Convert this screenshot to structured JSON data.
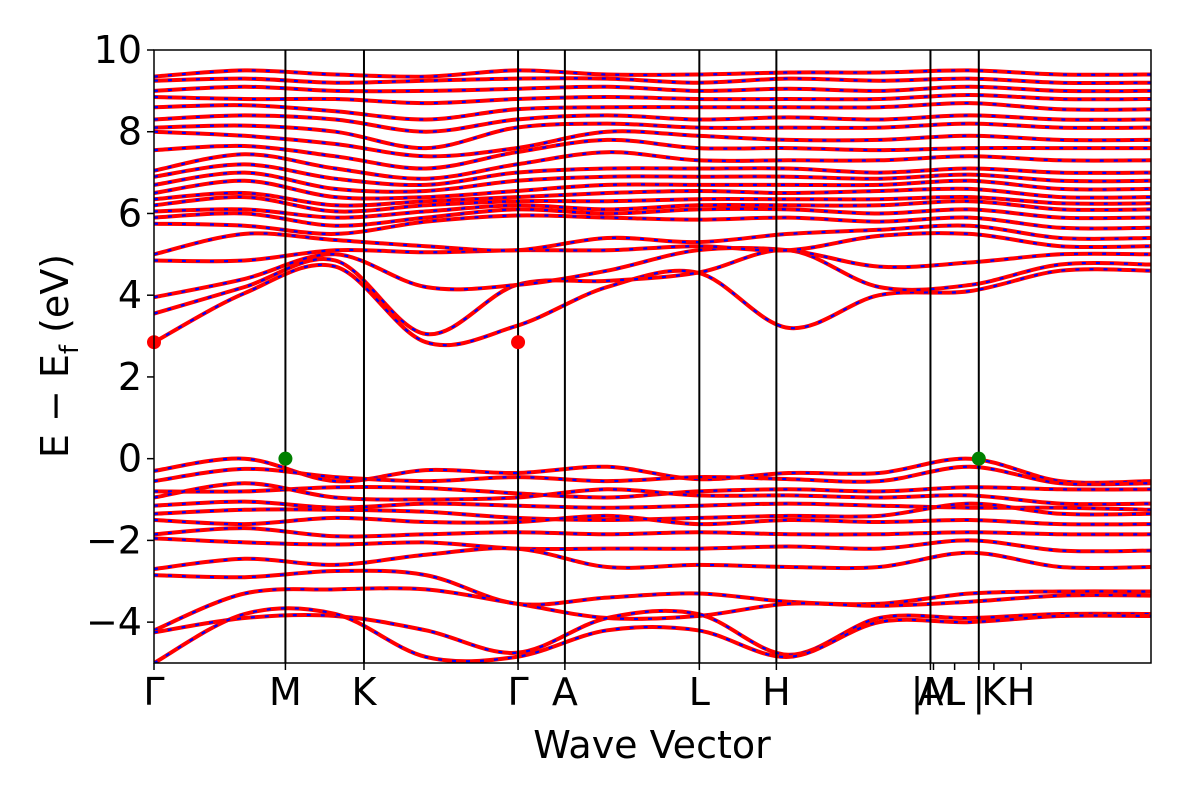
{
  "chart_data": {
    "type": "line",
    "title": "",
    "xlabel": "Wave Vector",
    "ylabel_parts": [
      "E − E",
      "f",
      " (eV)"
    ],
    "ylim": [
      -5,
      10
    ],
    "yticks": [
      {
        "value": 10,
        "label": "10"
      },
      {
        "value": 8,
        "label": "8"
      },
      {
        "value": 6,
        "label": "6"
      },
      {
        "value": 4,
        "label": "4"
      },
      {
        "value": 2,
        "label": "2"
      },
      {
        "value": 0,
        "label": "0"
      },
      {
        "value": -2,
        "label": "−2"
      },
      {
        "value": -4,
        "label": "−4"
      }
    ],
    "xlim": [
      0,
      6.6
    ],
    "kpoints": [
      {
        "x": 0.0,
        "label": "Γ"
      },
      {
        "x": 0.87,
        "label": "M"
      },
      {
        "x": 1.39,
        "label": "K"
      },
      {
        "x": 2.41,
        "label": "Γ"
      },
      {
        "x": 2.72,
        "label": "A"
      },
      {
        "x": 3.61,
        "label": "L"
      },
      {
        "x": 4.12,
        "label": "H"
      },
      {
        "x": 5.14,
        "label": "A"
      },
      {
        "x": 5.16,
        "label": "|M"
      },
      {
        "x": 5.3,
        "label": "L"
      },
      {
        "x": 5.46,
        "label": "|"
      },
      {
        "x": 5.56,
        "label": "K"
      },
      {
        "x": 5.74,
        "label": "H"
      }
    ],
    "vlines": [
      0.87,
      1.39,
      2.41,
      2.72,
      3.61,
      4.12,
      5.14,
      5.46
    ],
    "segments": [
      [
        0,
        5.14
      ],
      [
        5.14,
        5.46
      ],
      [
        5.46,
        6.6
      ]
    ],
    "series": [
      {
        "color": "#ff0000",
        "dash_color": "#0000ff"
      }
    ],
    "extrema": [
      {
        "x": 0.0,
        "y": 2.85,
        "color": "#ff0000"
      },
      {
        "x": 2.41,
        "y": 2.85,
        "color": "#ff0000"
      },
      {
        "x": 0.87,
        "y": 0.0,
        "color": "#008000"
      },
      {
        "x": 5.46,
        "y": 0.0,
        "color": "#008000"
      }
    ],
    "valence_bands": [
      [
        -0.3,
        0.0,
        -0.55,
        -0.28,
        -0.35,
        -0.2,
        -0.5,
        -0.35,
        -0.35,
        0.0,
        -0.55,
        -0.55
      ],
      [
        -0.55,
        -0.25,
        -0.45,
        -0.55,
        -0.45,
        -0.55,
        -0.45,
        -0.5,
        -0.55,
        -0.2,
        -0.6,
        -0.6
      ],
      [
        -0.8,
        -0.8,
        -0.7,
        -0.72,
        -0.85,
        -0.95,
        -0.8,
        -0.75,
        -0.8,
        -0.7,
        -0.75,
        -0.75
      ],
      [
        -0.95,
        -0.6,
        -0.95,
        -1.0,
        -0.95,
        -0.75,
        -0.9,
        -0.9,
        -0.95,
        -0.9,
        -1.1,
        -1.1
      ],
      [
        -1.15,
        -1.05,
        -1.2,
        -1.1,
        -1.15,
        -1.2,
        -1.15,
        -1.1,
        -1.15,
        -1.2,
        -1.2,
        -1.25
      ],
      [
        -1.35,
        -1.25,
        -1.25,
        -1.3,
        -1.45,
        -1.5,
        -1.45,
        -1.4,
        -1.4,
        -1.1,
        -1.35,
        -1.35
      ],
      [
        -1.5,
        -1.6,
        -1.45,
        -1.55,
        -1.55,
        -1.4,
        -1.6,
        -1.5,
        -1.55,
        -1.5,
        -1.6,
        -1.6
      ],
      [
        -1.85,
        -1.7,
        -1.9,
        -1.85,
        -1.8,
        -1.85,
        -1.8,
        -1.85,
        -1.85,
        -1.8,
        -1.85,
        -1.85
      ],
      [
        -1.95,
        -2.05,
        -2.1,
        -2.05,
        -2.2,
        -2.2,
        -2.2,
        -2.15,
        -2.2,
        -2.0,
        -2.25,
        -2.25
      ],
      [
        -2.7,
        -2.45,
        -2.6,
        -2.35,
        -2.2,
        -2.65,
        -2.6,
        -2.65,
        -2.65,
        -2.3,
        -2.65,
        -2.65
      ],
      [
        -2.85,
        -2.9,
        -2.75,
        -2.85,
        -3.55,
        -3.4,
        -3.3,
        -3.5,
        -3.55,
        -3.3,
        -3.25,
        -3.25
      ],
      [
        -4.2,
        -3.3,
        -3.2,
        -3.2,
        -3.55,
        -3.9,
        -3.85,
        -3.55,
        -3.6,
        -3.5,
        -3.35,
        -3.35
      ],
      [
        -4.25,
        -3.9,
        -3.85,
        -4.2,
        -4.75,
        -3.9,
        -3.8,
        -4.8,
        -3.9,
        -3.9,
        -3.8,
        -3.8
      ],
      [
        -5.0,
        -3.8,
        -3.8,
        -4.85,
        -4.85,
        -4.2,
        -4.2,
        -4.85,
        -4.0,
        -4.0,
        -3.85,
        -3.85
      ]
    ],
    "conduction_bands": [
      [
        2.85,
        4.05,
        4.7,
        2.85,
        3.25,
        4.2,
        4.55,
        3.2,
        4.0,
        4.1,
        4.6,
        4.6
      ],
      [
        3.55,
        4.2,
        4.85,
        3.05,
        4.25,
        4.35,
        4.55,
        5.1,
        4.2,
        4.25,
        4.75,
        4.75
      ],
      [
        3.95,
        4.4,
        5.0,
        4.2,
        4.25,
        4.6,
        5.1,
        5.1,
        4.7,
        4.8,
        5.0,
        5.0
      ],
      [
        4.85,
        4.85,
        5.1,
        5.05,
        5.1,
        5.1,
        5.2,
        5.1,
        5.45,
        5.5,
        5.2,
        5.2
      ],
      [
        5.0,
        5.5,
        5.35,
        5.2,
        5.1,
        5.4,
        5.3,
        5.5,
        5.6,
        5.7,
        5.4,
        5.4
      ],
      [
        5.75,
        5.7,
        5.5,
        5.8,
        5.95,
        5.9,
        5.85,
        5.9,
        5.8,
        5.9,
        5.65,
        5.65
      ],
      [
        5.9,
        6.0,
        5.7,
        5.9,
        6.1,
        6.0,
        6.1,
        6.1,
        6.0,
        6.1,
        5.9,
        5.9
      ],
      [
        6.05,
        6.1,
        5.9,
        6.05,
        6.2,
        6.1,
        6.2,
        6.2,
        6.2,
        6.3,
        6.1,
        6.1
      ],
      [
        6.2,
        6.4,
        6.05,
        6.2,
        6.3,
        6.3,
        6.35,
        6.35,
        6.35,
        6.4,
        6.25,
        6.25
      ],
      [
        6.35,
        6.5,
        6.2,
        6.3,
        6.4,
        6.5,
        6.55,
        6.5,
        6.55,
        6.6,
        6.4,
        6.4
      ],
      [
        6.5,
        6.8,
        6.4,
        6.4,
        6.55,
        6.7,
        6.7,
        6.7,
        6.7,
        6.8,
        6.6,
        6.6
      ],
      [
        6.7,
        7.0,
        6.6,
        6.55,
        6.8,
        6.9,
        6.9,
        6.9,
        6.85,
        6.95,
        6.8,
        6.8
      ],
      [
        6.9,
        7.2,
        6.85,
        6.7,
        7.0,
        7.1,
        7.1,
        7.1,
        7.0,
        7.1,
        7.0,
        7.0
      ],
      [
        7.05,
        7.45,
        7.1,
        6.85,
        7.2,
        7.5,
        7.3,
        7.3,
        7.3,
        7.4,
        7.3,
        7.3
      ],
      [
        7.55,
        7.65,
        7.4,
        7.1,
        7.5,
        7.8,
        7.6,
        7.6,
        7.55,
        7.6,
        7.6,
        7.6
      ],
      [
        8.0,
        7.9,
        7.7,
        7.4,
        7.6,
        8.0,
        7.9,
        7.8,
        7.8,
        7.9,
        7.8,
        7.8
      ],
      [
        8.1,
        8.15,
        8.0,
        7.6,
        8.1,
        8.2,
        8.1,
        8.1,
        8.1,
        8.2,
        8.1,
        8.1
      ],
      [
        8.3,
        8.4,
        8.3,
        8.0,
        8.3,
        8.4,
        8.3,
        8.35,
        8.3,
        8.4,
        8.3,
        8.3
      ],
      [
        8.6,
        8.65,
        8.5,
        8.3,
        8.55,
        8.6,
        8.6,
        8.6,
        8.6,
        8.7,
        8.55,
        8.55
      ],
      [
        8.85,
        8.8,
        8.8,
        8.7,
        8.8,
        8.85,
        8.8,
        8.8,
        8.8,
        8.9,
        8.8,
        8.8
      ],
      [
        9.0,
        9.1,
        9.0,
        9.0,
        9.05,
        9.1,
        9.0,
        9.05,
        9.0,
        9.1,
        9.0,
        9.0
      ],
      [
        9.25,
        9.3,
        9.2,
        9.25,
        9.3,
        9.3,
        9.2,
        9.3,
        9.25,
        9.3,
        9.2,
        9.2
      ],
      [
        9.35,
        9.5,
        9.4,
        9.35,
        9.5,
        9.4,
        9.4,
        9.45,
        9.45,
        9.5,
        9.4,
        9.4
      ]
    ]
  }
}
